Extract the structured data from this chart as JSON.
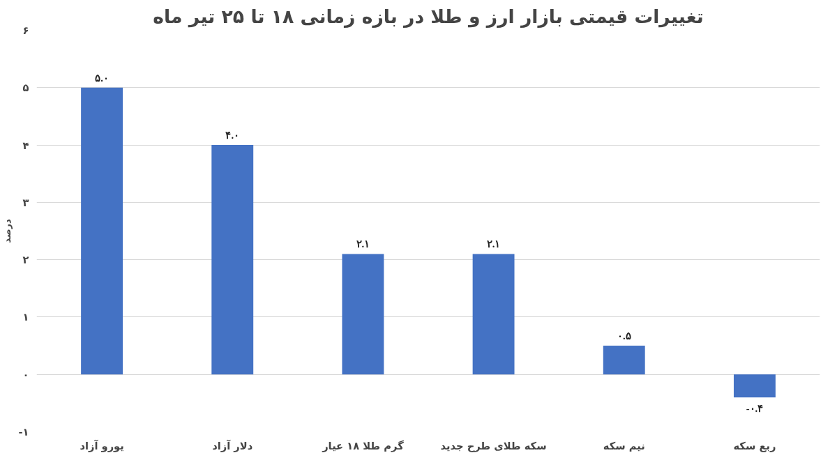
{
  "chart_data": {
    "type": "bar",
    "title": "تغییرات قیمتی بازار ارز و طلا در بازه زمانی ۱۸ تا ۲۵ تیر ماه",
    "ylabel": "درصد",
    "categories": [
      "یورو آزاد",
      "دلار آزاد",
      "گرم طلا ۱۸ عیار",
      "سکه طلای طرح جدید",
      "نیم سکه",
      "ربع سکه"
    ],
    "values": [
      5.0,
      4.0,
      2.1,
      2.1,
      0.5,
      -0.4
    ],
    "value_labels": [
      "۵.۰",
      "۴.۰",
      "۲.۱",
      "۲.۱",
      "۰.۵",
      "-۰.۴"
    ],
    "color": "#4472c4",
    "ylim": [
      -1,
      6
    ],
    "yticks": [
      {
        "value": -1,
        "label": "-۱"
      },
      {
        "value": 0,
        "label": "۰"
      },
      {
        "value": 1,
        "label": "۱"
      },
      {
        "value": 2,
        "label": "۲"
      },
      {
        "value": 3,
        "label": "۳"
      },
      {
        "value": 4,
        "label": "۴"
      },
      {
        "value": 5,
        "label": "۵"
      },
      {
        "value": 6,
        "label": "۶"
      }
    ],
    "grid": "y"
  }
}
